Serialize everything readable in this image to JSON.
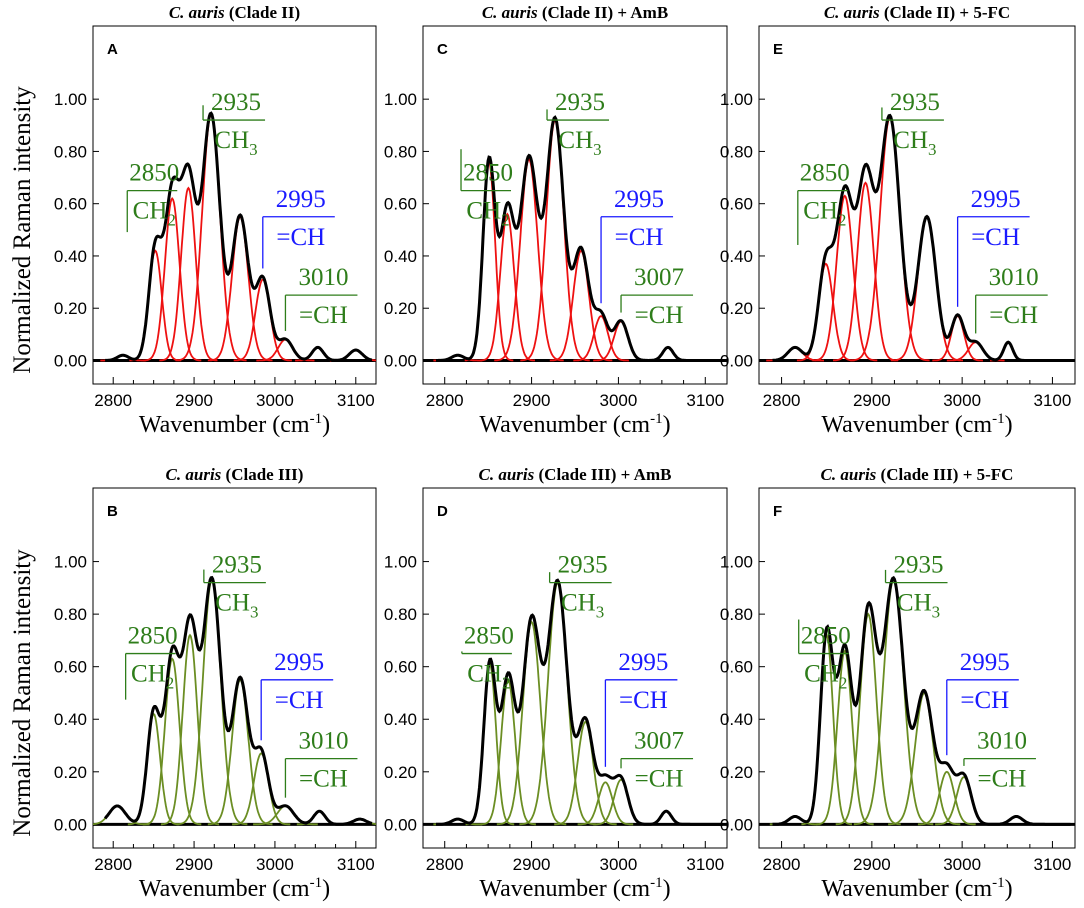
{
  "figure": {
    "ylabel": "Normalized Raman intensity",
    "xlabel_prefix": "Wavenumber (cm",
    "xlabel_sup": "-1",
    "xlabel_suffix": ")",
    "species": "C. auris",
    "colors": {
      "green": "#2e7d1a",
      "blue": "#1a1aff",
      "red": "#ee1111",
      "olive": "#6b8e23",
      "black": "#000000"
    }
  },
  "chart_data": [
    {
      "panel": "A",
      "type": "line",
      "species": "C. auris",
      "title_rest": " (Clade II)",
      "xlim": [
        2775,
        3125
      ],
      "ylim": [
        -0.09,
        1.28
      ],
      "xticks": [
        "2800",
        "2900",
        "3000",
        "3100"
      ],
      "yticks": [
        "0.00",
        "0.20",
        "0.40",
        "0.60",
        "0.80",
        "1.00"
      ],
      "fit_color": "red",
      "bands": [
        {
          "center": 2812,
          "amp": 0.02,
          "width": 7
        },
        {
          "center": 2852,
          "amp": 0.42,
          "width": 8
        },
        {
          "center": 2873,
          "amp": 0.62,
          "width": 9
        },
        {
          "center": 2893,
          "amp": 0.66,
          "width": 9
        },
        {
          "center": 2921,
          "amp": 0.94,
          "width": 11
        },
        {
          "center": 2957,
          "amp": 0.55,
          "width": 10
        },
        {
          "center": 2985,
          "amp": 0.31,
          "width": 9
        },
        {
          "center": 3013,
          "amp": 0.08,
          "width": 9
        },
        {
          "center": 3053,
          "amp": 0.05,
          "width": 7
        },
        {
          "center": 3100,
          "amp": 0.04,
          "width": 8
        }
      ],
      "annotations": [
        {
          "wn": "2850",
          "group": "CH",
          "sub": "2",
          "color": "green",
          "x_anchor": 2852
        },
        {
          "wn": "2935",
          "group": "CH",
          "sub": "3",
          "color": "green",
          "x_anchor": 2921
        },
        {
          "wn": "2995",
          "group": "=CH",
          "sub": "",
          "color": "blue",
          "x_anchor": 2985
        },
        {
          "wn": "3010",
          "group": "=CH",
          "sub": "",
          "color": "green",
          "x_anchor": 3013
        }
      ]
    },
    {
      "panel": "C",
      "type": "line",
      "species": "C. auris",
      "title_rest": " (Clade II) + AmB",
      "xlim": [
        2775,
        3125
      ],
      "ylim": [
        -0.09,
        1.28
      ],
      "xticks": [
        "2800",
        "2900",
        "3000",
        "3100"
      ],
      "yticks": [
        "0.00",
        "0.20",
        "0.40",
        "0.60",
        "0.80",
        "1.00"
      ],
      "fit_color": "red",
      "bands": [
        {
          "center": 2815,
          "amp": 0.02,
          "width": 7
        },
        {
          "center": 2851,
          "amp": 0.76,
          "width": 7
        },
        {
          "center": 2872,
          "amp": 0.56,
          "width": 8
        },
        {
          "center": 2897,
          "amp": 0.77,
          "width": 10
        },
        {
          "center": 2927,
          "amp": 0.92,
          "width": 10
        },
        {
          "center": 2957,
          "amp": 0.42,
          "width": 9
        },
        {
          "center": 2980,
          "amp": 0.17,
          "width": 8
        },
        {
          "center": 3003,
          "amp": 0.15,
          "width": 8
        },
        {
          "center": 3057,
          "amp": 0.05,
          "width": 6
        }
      ],
      "annotations": [
        {
          "wn": "2850",
          "group": "CH",
          "sub": "2",
          "color": "green",
          "x_anchor": 2851
        },
        {
          "wn": "2935",
          "group": "CH",
          "sub": "3",
          "color": "green",
          "x_anchor": 2927
        },
        {
          "wn": "2995",
          "group": "=CH",
          "sub": "",
          "color": "blue",
          "x_anchor": 2980
        },
        {
          "wn": "3007",
          "group": "=CH",
          "sub": "",
          "color": "green",
          "x_anchor": 3003
        }
      ]
    },
    {
      "panel": "E",
      "type": "line",
      "species": "C. auris",
      "title_rest": " (Clade II) + 5-FC",
      "xlim": [
        2775,
        3125
      ],
      "ylim": [
        -0.09,
        1.28
      ],
      "xticks": [
        "2800",
        "2900",
        "3000",
        "3100"
      ],
      "yticks": [
        "0.00",
        "0.20",
        "0.40",
        "0.60",
        "0.80",
        "1.00"
      ],
      "fit_color": "red",
      "bands": [
        {
          "center": 2815,
          "amp": 0.05,
          "width": 8
        },
        {
          "center": 2849,
          "amp": 0.37,
          "width": 8
        },
        {
          "center": 2870,
          "amp": 0.63,
          "width": 9
        },
        {
          "center": 2893,
          "amp": 0.68,
          "width": 9
        },
        {
          "center": 2920,
          "amp": 0.93,
          "width": 11
        },
        {
          "center": 2961,
          "amp": 0.55,
          "width": 10
        },
        {
          "center": 2995,
          "amp": 0.17,
          "width": 7
        },
        {
          "center": 3015,
          "amp": 0.07,
          "width": 8
        },
        {
          "center": 3051,
          "amp": 0.07,
          "width": 5
        }
      ],
      "annotations": [
        {
          "wn": "2850",
          "group": "CH",
          "sub": "2",
          "color": "green",
          "x_anchor": 2849
        },
        {
          "wn": "2935",
          "group": "CH",
          "sub": "3",
          "color": "green",
          "x_anchor": 2920
        },
        {
          "wn": "2995",
          "group": "=CH",
          "sub": "",
          "color": "blue",
          "x_anchor": 2995
        },
        {
          "wn": "3010",
          "group": "=CH",
          "sub": "",
          "color": "green",
          "x_anchor": 3015
        }
      ]
    },
    {
      "panel": "B",
      "type": "line",
      "species": "C. auris",
      "title_rest": " (Clade III)",
      "xlim": [
        2775,
        3125
      ],
      "ylim": [
        -0.09,
        1.28
      ],
      "xticks": [
        "2800",
        "2900",
        "3000",
        "3100"
      ],
      "yticks": [
        "0.00",
        "0.20",
        "0.40",
        "0.60",
        "0.80",
        "1.00"
      ],
      "fit_color": "olive",
      "bands": [
        {
          "center": 2805,
          "amp": 0.07,
          "width": 10
        },
        {
          "center": 2850,
          "amp": 0.42,
          "width": 8
        },
        {
          "center": 2873,
          "amp": 0.63,
          "width": 9
        },
        {
          "center": 2895,
          "amp": 0.72,
          "width": 9
        },
        {
          "center": 2922,
          "amp": 0.93,
          "width": 11
        },
        {
          "center": 2957,
          "amp": 0.55,
          "width": 10
        },
        {
          "center": 2983,
          "amp": 0.27,
          "width": 9
        },
        {
          "center": 3013,
          "amp": 0.07,
          "width": 10
        },
        {
          "center": 3055,
          "amp": 0.05,
          "width": 7
        },
        {
          "center": 3105,
          "amp": 0.02,
          "width": 8
        }
      ],
      "annotations": [
        {
          "wn": "2850",
          "group": "CH",
          "sub": "2",
          "color": "green",
          "x_anchor": 2850
        },
        {
          "wn": "2935",
          "group": "CH",
          "sub": "3",
          "color": "green",
          "x_anchor": 2922
        },
        {
          "wn": "2995",
          "group": "=CH",
          "sub": "",
          "color": "blue",
          "x_anchor": 2983
        },
        {
          "wn": "3010",
          "group": "=CH",
          "sub": "",
          "color": "green",
          "x_anchor": 3013
        }
      ]
    },
    {
      "panel": "D",
      "type": "line",
      "species": "C. auris",
      "title_rest": " (Clade III) + AmB",
      "xlim": [
        2775,
        3125
      ],
      "ylim": [
        -0.09,
        1.28
      ],
      "xticks": [
        "2800",
        "2900",
        "3000",
        "3100"
      ],
      "yticks": [
        "0.00",
        "0.20",
        "0.40",
        "0.60",
        "0.80",
        "1.00"
      ],
      "fit_color": "olive",
      "bands": [
        {
          "center": 2815,
          "amp": 0.02,
          "width": 7
        },
        {
          "center": 2852,
          "amp": 0.61,
          "width": 7
        },
        {
          "center": 2873,
          "amp": 0.55,
          "width": 8
        },
        {
          "center": 2900,
          "amp": 0.77,
          "width": 10
        },
        {
          "center": 2930,
          "amp": 0.92,
          "width": 11
        },
        {
          "center": 2962,
          "amp": 0.39,
          "width": 9
        },
        {
          "center": 2985,
          "amp": 0.16,
          "width": 8
        },
        {
          "center": 3003,
          "amp": 0.17,
          "width": 8
        },
        {
          "center": 3055,
          "amp": 0.05,
          "width": 6
        }
      ],
      "annotations": [
        {
          "wn": "2850",
          "group": "CH",
          "sub": "2",
          "color": "green",
          "x_anchor": 2852
        },
        {
          "wn": "2935",
          "group": "CH",
          "sub": "3",
          "color": "green",
          "x_anchor": 2930
        },
        {
          "wn": "2995",
          "group": "=CH",
          "sub": "",
          "color": "blue",
          "x_anchor": 2985
        },
        {
          "wn": "3007",
          "group": "=CH",
          "sub": "",
          "color": "green",
          "x_anchor": 3003
        }
      ]
    },
    {
      "panel": "F",
      "type": "line",
      "species": "C. auris",
      "title_rest": " (Clade III) + 5-FC",
      "xlim": [
        2775,
        3125
      ],
      "ylim": [
        -0.09,
        1.28
      ],
      "xticks": [
        "2800",
        "2900",
        "3000",
        "3100"
      ],
      "yticks": [
        "0.00",
        "0.20",
        "0.40",
        "0.60",
        "0.80",
        "1.00"
      ],
      "fit_color": "olive",
      "bands": [
        {
          "center": 2815,
          "amp": 0.03,
          "width": 7
        },
        {
          "center": 2850,
          "amp": 0.72,
          "width": 7
        },
        {
          "center": 2870,
          "amp": 0.66,
          "width": 8
        },
        {
          "center": 2896,
          "amp": 0.8,
          "width": 9
        },
        {
          "center": 2924,
          "amp": 0.93,
          "width": 11
        },
        {
          "center": 2958,
          "amp": 0.5,
          "width": 10
        },
        {
          "center": 2983,
          "amp": 0.2,
          "width": 8
        },
        {
          "center": 3002,
          "amp": 0.18,
          "width": 8
        },
        {
          "center": 3060,
          "amp": 0.03,
          "width": 7
        }
      ],
      "annotations": [
        {
          "wn": "2850",
          "group": "CH",
          "sub": "2",
          "color": "green",
          "x_anchor": 2850
        },
        {
          "wn": "2935",
          "group": "CH",
          "sub": "3",
          "color": "green",
          "x_anchor": 2924
        },
        {
          "wn": "2995",
          "group": "=CH",
          "sub": "",
          "color": "blue",
          "x_anchor": 2983
        },
        {
          "wn": "3010",
          "group": "=CH",
          "sub": "",
          "color": "green",
          "x_anchor": 3002
        }
      ]
    }
  ]
}
